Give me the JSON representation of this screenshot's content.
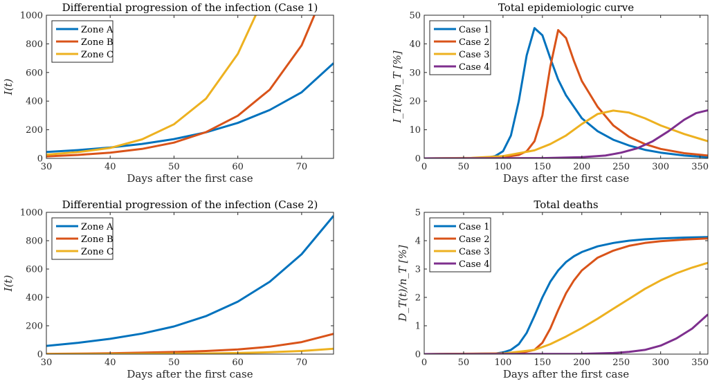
{
  "chart_data": [
    {
      "type": "line",
      "title": "Differential progression of the infection (Case 1)",
      "xlabel": "Days after the first case",
      "ylabel": "I(t)",
      "xlim": [
        30,
        75
      ],
      "ylim": [
        0,
        1000
      ],
      "xticks": [
        30,
        40,
        50,
        60,
        70
      ],
      "yticks": [
        0,
        200,
        400,
        600,
        800,
        1000
      ],
      "legend_position": "top-left",
      "grid": false,
      "series": [
        {
          "name": "Zone A",
          "color": "#0072BD",
          "x": [
            30,
            35,
            40,
            45,
            50,
            55,
            60,
            65,
            70,
            75
          ],
          "y": [
            45,
            58,
            76,
            101,
            135,
            182,
            248,
            338,
            462,
            665
          ]
        },
        {
          "name": "Zone B",
          "color": "#D95319",
          "x": [
            30,
            35,
            40,
            45,
            50,
            55,
            60,
            65,
            70,
            72
          ],
          "y": [
            14,
            24,
            40,
            66,
            110,
            183,
            298,
            480,
            790,
            1000
          ]
        },
        {
          "name": "Zone C",
          "color": "#EDB120",
          "x": [
            30,
            35,
            40,
            45,
            50,
            55,
            60,
            62.8
          ],
          "y": [
            26,
            44,
            73,
            133,
            238,
            417,
            730,
            1000
          ]
        }
      ]
    },
    {
      "type": "line",
      "title": "Total epidemiologic curve",
      "xlabel": "Days after the first case",
      "ylabel": "I_T(t)/n_T [%]",
      "xlim": [
        0,
        360
      ],
      "ylim": [
        0,
        50
      ],
      "xticks": [
        0,
        50,
        100,
        150,
        200,
        250,
        300,
        350
      ],
      "yticks": [
        0,
        10,
        20,
        30,
        40,
        50
      ],
      "legend_position": "top-left",
      "grid": false,
      "series": [
        {
          "name": "Case 1",
          "color": "#0072BD",
          "x": [
            0,
            60,
            80,
            90,
            100,
            110,
            120,
            130,
            140,
            150,
            160,
            170,
            180,
            200,
            220,
            240,
            260,
            280,
            300,
            330,
            360
          ],
          "y": [
            0,
            0.05,
            0.3,
            0.8,
            2.5,
            8,
            20,
            36,
            45.5,
            43,
            35,
            27.5,
            22,
            14,
            9.5,
            6.5,
            4.5,
            3,
            2,
            1,
            0.4
          ]
        },
        {
          "name": "Case 2",
          "color": "#D95319",
          "x": [
            0,
            80,
            100,
            120,
            130,
            140,
            150,
            160,
            170,
            180,
            190,
            200,
            220,
            240,
            260,
            280,
            300,
            330,
            360
          ],
          "y": [
            0,
            0.1,
            0.4,
            1.2,
            2.5,
            6,
            15,
            32,
            44.8,
            42,
            34,
            27,
            18,
            11.5,
            7.5,
            5,
            3.3,
            1.8,
            1
          ]
        },
        {
          "name": "Case 3",
          "color": "#EDB120",
          "x": [
            0,
            60,
            100,
            140,
            160,
            180,
            200,
            220,
            240,
            260,
            280,
            300,
            330,
            360
          ],
          "y": [
            0,
            0.2,
            0.8,
            2.8,
            5,
            8,
            12,
            15.5,
            16.7,
            16,
            14,
            11.5,
            8.5,
            6
          ]
        },
        {
          "name": "Case 4",
          "color": "#7E2F8E",
          "x": [
            0,
            150,
            200,
            230,
            250,
            270,
            290,
            310,
            330,
            345,
            360
          ],
          "y": [
            0,
            0.1,
            0.4,
            1,
            2,
            3.5,
            6,
            9.5,
            13.5,
            15.8,
            16.8
          ]
        }
      ]
    },
    {
      "type": "line",
      "title": "Differential progression of the infection (Case 2)",
      "xlabel": "Days after the first case",
      "ylabel": "I(t)",
      "xlim": [
        30,
        75
      ],
      "ylim": [
        0,
        1000
      ],
      "xticks": [
        30,
        40,
        50,
        60,
        70
      ],
      "yticks": [
        0,
        200,
        400,
        600,
        800,
        1000
      ],
      "legend_position": "top-left",
      "grid": false,
      "series": [
        {
          "name": "Zone A",
          "color": "#0072BD",
          "x": [
            30,
            35,
            40,
            45,
            50,
            55,
            60,
            65,
            70,
            75
          ],
          "y": [
            58,
            80,
            108,
            145,
            195,
            268,
            370,
            510,
            705,
            975
          ]
        },
        {
          "name": "Zone B",
          "color": "#D95319",
          "x": [
            30,
            35,
            40,
            45,
            50,
            55,
            60,
            65,
            70,
            75
          ],
          "y": [
            2,
            4,
            6,
            10,
            15,
            22,
            33,
            52,
            85,
            143
          ]
        },
        {
          "name": "Zone C",
          "color": "#EDB120",
          "x": [
            30,
            35,
            40,
            45,
            50,
            55,
            60,
            65,
            70,
            75
          ],
          "y": [
            0,
            0.5,
            1,
            2,
            3,
            5,
            8,
            13,
            22,
            38
          ]
        }
      ]
    },
    {
      "type": "line",
      "title": "Total deaths",
      "xlabel": "Days after the first case",
      "ylabel": "D_T(t)/n_T [%]",
      "xlim": [
        0,
        360
      ],
      "ylim": [
        0,
        5
      ],
      "xticks": [
        0,
        50,
        100,
        150,
        200,
        250,
        300,
        350
      ],
      "yticks": [
        0,
        1,
        2,
        3,
        4,
        5
      ],
      "legend_position": "top-left",
      "grid": false,
      "series": [
        {
          "name": "Case 1",
          "color": "#0072BD",
          "x": [
            0,
            90,
            100,
            110,
            120,
            130,
            140,
            150,
            160,
            170,
            180,
            190,
            200,
            220,
            240,
            260,
            280,
            300,
            330,
            360
          ],
          "y": [
            0,
            0.02,
            0.06,
            0.15,
            0.35,
            0.75,
            1.35,
            2.0,
            2.55,
            2.95,
            3.25,
            3.45,
            3.6,
            3.8,
            3.92,
            4.0,
            4.05,
            4.08,
            4.11,
            4.13
          ]
        },
        {
          "name": "Case 2",
          "color": "#D95319",
          "x": [
            0,
            120,
            140,
            150,
            160,
            170,
            180,
            190,
            200,
            220,
            240,
            260,
            280,
            300,
            330,
            360
          ],
          "y": [
            0,
            0.03,
            0.15,
            0.4,
            0.9,
            1.55,
            2.15,
            2.6,
            2.95,
            3.4,
            3.65,
            3.82,
            3.92,
            3.98,
            4.04,
            4.08
          ]
        },
        {
          "name": "Case 3",
          "color": "#EDB120",
          "x": [
            0,
            100,
            140,
            160,
            180,
            200,
            220,
            240,
            260,
            280,
            300,
            320,
            340,
            360
          ],
          "y": [
            0,
            0.02,
            0.15,
            0.35,
            0.62,
            0.92,
            1.25,
            1.6,
            1.95,
            2.3,
            2.6,
            2.85,
            3.05,
            3.22
          ]
        },
        {
          "name": "Case 4",
          "color": "#7E2F8E",
          "x": [
            0,
            200,
            240,
            260,
            280,
            300,
            320,
            340,
            360
          ],
          "y": [
            0,
            0.01,
            0.04,
            0.08,
            0.15,
            0.3,
            0.55,
            0.9,
            1.4
          ]
        }
      ]
    }
  ]
}
